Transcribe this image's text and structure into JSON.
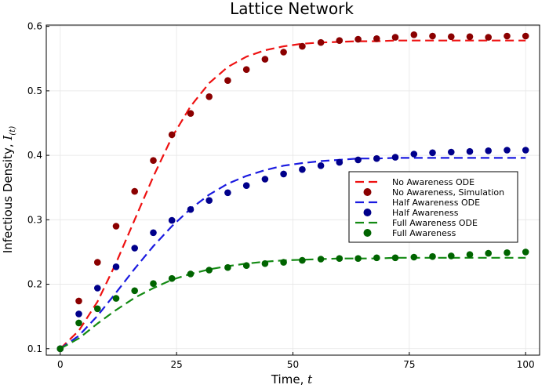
{
  "chart_data": {
    "type": "line",
    "title": "Lattice Network",
    "xlabel": "Time, ",
    "xlabel_symbol": "t",
    "ylabel": "Infectious Density, ",
    "ylabel_symbol": "I",
    "ylabel_subscript": "(t)",
    "xlim": [
      -3,
      103
    ],
    "ylim": [
      0.09,
      0.602
    ],
    "xticks": [
      0,
      25,
      50,
      75,
      100
    ],
    "xtick_labels": [
      "0",
      "25",
      "50",
      "75",
      "100"
    ],
    "yticks": [
      0.1,
      0.2,
      0.3,
      0.4,
      0.5,
      0.6
    ],
    "ytick_labels": [
      "0.1",
      "0.2",
      "0.3",
      "0.4",
      "0.5",
      "0.6"
    ],
    "grid": true,
    "legend_position": "right",
    "series": [
      {
        "name": "No Awareness ODE",
        "kind": "line",
        "style": "dashed",
        "color": "#ee1111",
        "x": [
          0,
          4,
          8,
          12,
          16,
          20,
          24,
          28,
          32,
          36,
          40,
          44,
          48,
          52,
          56,
          60,
          64,
          68,
          72,
          76,
          80,
          84,
          88,
          92,
          96,
          100
        ],
        "y": [
          0.1,
          0.128,
          0.173,
          0.233,
          0.3,
          0.367,
          0.428,
          0.476,
          0.512,
          0.537,
          0.553,
          0.563,
          0.569,
          0.573,
          0.575,
          0.576,
          0.577,
          0.577,
          0.578,
          0.578,
          0.578,
          0.578,
          0.578,
          0.578,
          0.578,
          0.578
        ]
      },
      {
        "name": "No Awareness, Simulation",
        "kind": "scatter",
        "color": "#8b0000",
        "x": [
          0,
          4,
          8,
          12,
          16,
          20,
          24,
          28,
          32,
          36,
          40,
          44,
          48,
          52,
          56,
          60,
          64,
          68,
          72,
          76,
          80,
          84,
          88,
          92,
          96,
          100
        ],
        "y": [
          0.1,
          0.174,
          0.234,
          0.29,
          0.344,
          0.392,
          0.432,
          0.465,
          0.491,
          0.516,
          0.533,
          0.549,
          0.56,
          0.569,
          0.575,
          0.578,
          0.58,
          0.581,
          0.583,
          0.587,
          0.585,
          0.584,
          0.584,
          0.583,
          0.585,
          0.585
        ]
      },
      {
        "name": "Half Awareness ODE",
        "kind": "line",
        "style": "dashed",
        "color": "#1a1ae0",
        "x": [
          0,
          4,
          8,
          12,
          16,
          20,
          24,
          28,
          32,
          36,
          40,
          44,
          48,
          52,
          56,
          60,
          64,
          68,
          72,
          76,
          80,
          84,
          88,
          92,
          96,
          100
        ],
        "y": [
          0.1,
          0.12,
          0.151,
          0.187,
          0.224,
          0.259,
          0.29,
          0.317,
          0.339,
          0.356,
          0.368,
          0.377,
          0.384,
          0.388,
          0.391,
          0.393,
          0.395,
          0.395,
          0.396,
          0.396,
          0.396,
          0.396,
          0.396,
          0.396,
          0.396,
          0.396
        ]
      },
      {
        "name": "Half Awareness",
        "kind": "scatter",
        "color": "#00008b",
        "x": [
          0,
          4,
          8,
          12,
          16,
          20,
          24,
          28,
          32,
          36,
          40,
          44,
          48,
          52,
          56,
          60,
          64,
          68,
          72,
          76,
          80,
          84,
          88,
          92,
          96,
          100
        ],
        "y": [
          0.1,
          0.154,
          0.194,
          0.227,
          0.256,
          0.28,
          0.299,
          0.316,
          0.33,
          0.342,
          0.353,
          0.363,
          0.371,
          0.378,
          0.384,
          0.389,
          0.393,
          0.395,
          0.397,
          0.402,
          0.404,
          0.405,
          0.406,
          0.407,
          0.408,
          0.408
        ]
      },
      {
        "name": "Full Awareness ODE",
        "kind": "line",
        "style": "dashed",
        "color": "#138a13",
        "x": [
          0,
          4,
          8,
          12,
          16,
          20,
          24,
          28,
          32,
          36,
          40,
          44,
          48,
          52,
          56,
          60,
          64,
          68,
          72,
          76,
          80,
          84,
          88,
          92,
          96,
          100
        ],
        "y": [
          0.1,
          0.116,
          0.139,
          0.16,
          0.179,
          0.194,
          0.207,
          0.216,
          0.223,
          0.228,
          0.232,
          0.235,
          0.237,
          0.238,
          0.239,
          0.24,
          0.24,
          0.24,
          0.241,
          0.241,
          0.241,
          0.241,
          0.241,
          0.241,
          0.241,
          0.241
        ]
      },
      {
        "name": "Full Awareness",
        "kind": "scatter",
        "color": "#006400",
        "x": [
          0,
          4,
          8,
          12,
          16,
          20,
          24,
          28,
          32,
          36,
          40,
          44,
          48,
          52,
          56,
          60,
          64,
          68,
          72,
          76,
          80,
          84,
          88,
          92,
          96,
          100
        ],
        "y": [
          0.1,
          0.14,
          0.162,
          0.178,
          0.19,
          0.201,
          0.209,
          0.216,
          0.222,
          0.226,
          0.229,
          0.232,
          0.234,
          0.237,
          0.239,
          0.24,
          0.24,
          0.241,
          0.241,
          0.242,
          0.243,
          0.244,
          0.246,
          0.248,
          0.249,
          0.25
        ]
      }
    ]
  }
}
